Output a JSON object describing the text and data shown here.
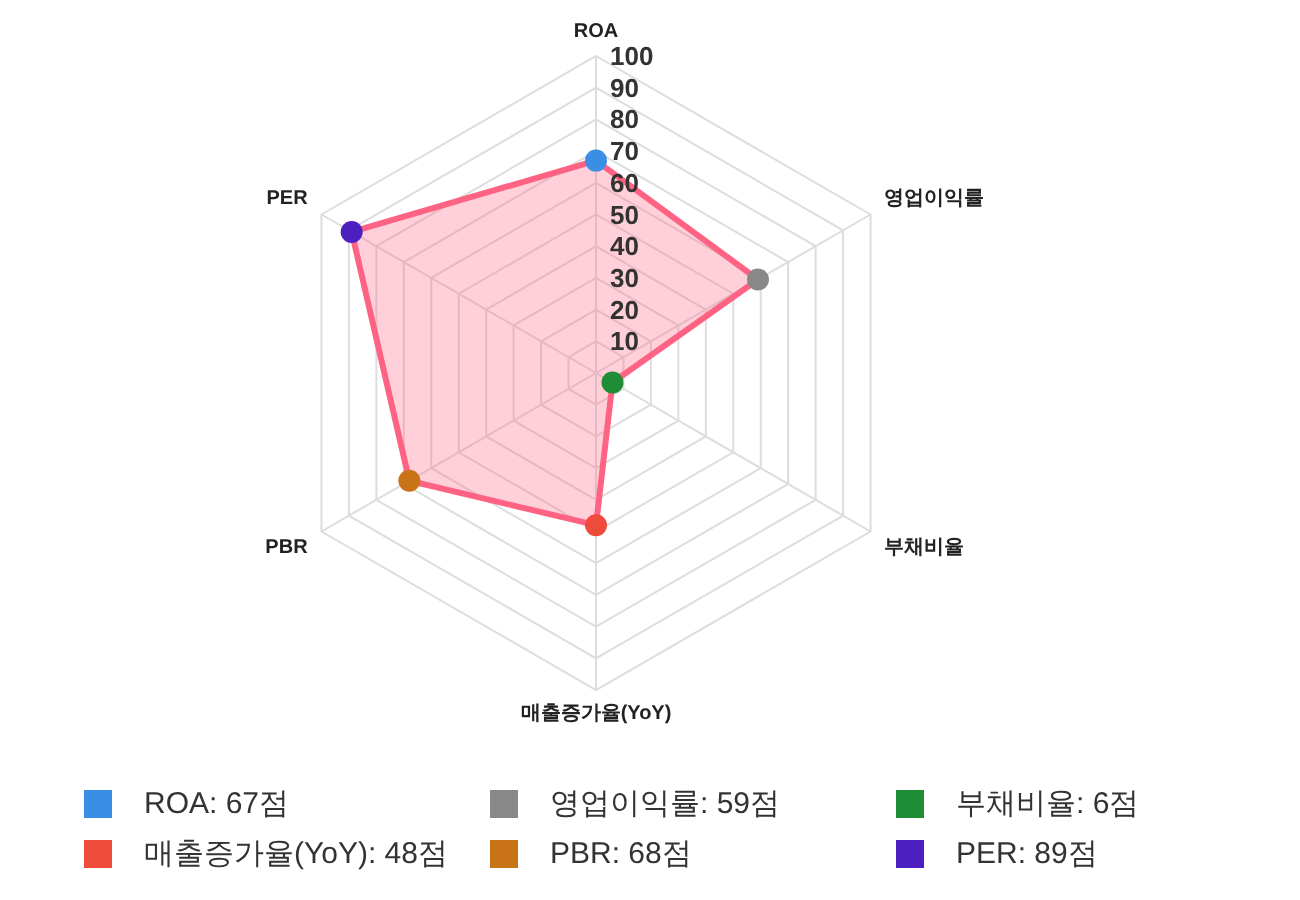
{
  "chart_data": {
    "type": "radar",
    "categories": [
      "ROA",
      "영업이익률",
      "부채비율",
      "매출증가율(YoY)",
      "PBR",
      "PER"
    ],
    "ylim": [
      0,
      100
    ],
    "yticks": [
      10,
      20,
      30,
      40,
      50,
      60,
      70,
      80,
      90,
      100
    ],
    "series": [
      {
        "color": "#ff6384",
        "values": [
          67,
          59,
          6,
          48,
          68,
          89
        ],
        "colors": [
          "#3a8ee6",
          "#888888",
          "#1f8c36",
          "#ee4b3b",
          "#c97319",
          "#4b1fc0"
        ]
      }
    ],
    "annotations": [
      "ROA: 67점",
      "영업이익률: 59점",
      "부채비율: 6점",
      "매출증가율(YoY): 48점",
      "PBR: 68점",
      "PER: 89점"
    ],
    "grid": true,
    "marker": "circle"
  }
}
